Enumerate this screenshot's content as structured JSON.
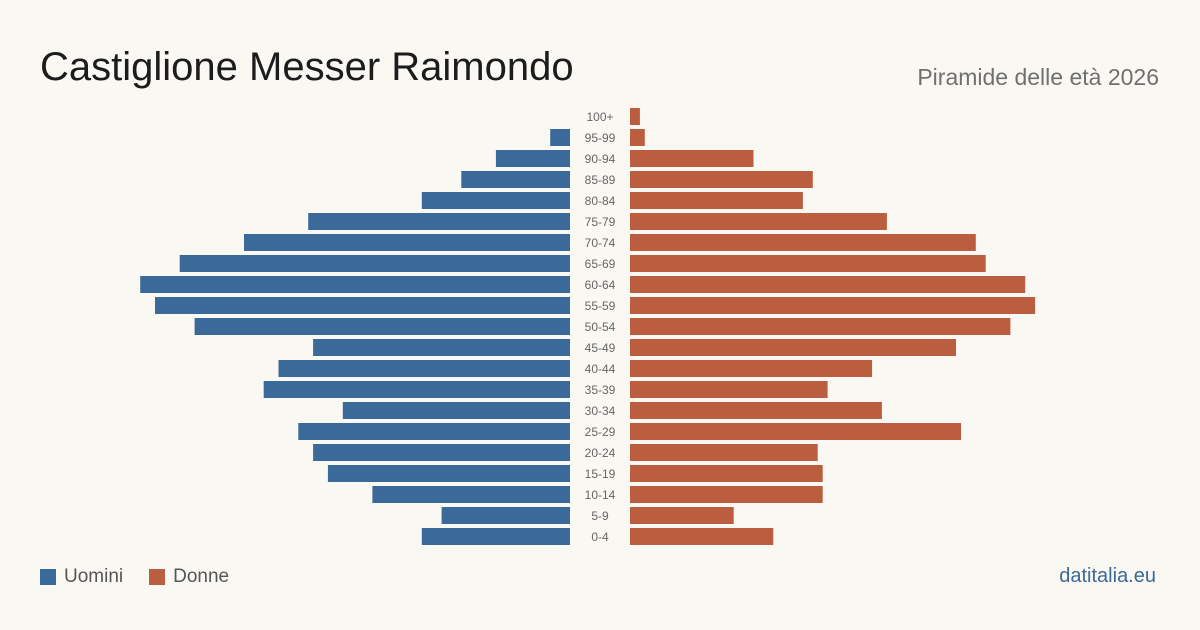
{
  "title": "Castiglione Messer Raimondo",
  "subtitle": "Piramide delle età 2026",
  "site": "datitalia.eu",
  "legend": {
    "men": "Uomini",
    "women": "Donne"
  },
  "colors": {
    "background": "#faf8f3",
    "men": "#3b6a9a",
    "women": "#bb5d3f",
    "label": "#666666",
    "site": "#3c6997"
  },
  "chart_data": {
    "type": "bar",
    "categories": [
      "0-4",
      "5-9",
      "10-14",
      "15-19",
      "20-24",
      "25-29",
      "30-34",
      "35-39",
      "40-44",
      "45-49",
      "50-54",
      "55-59",
      "60-64",
      "65-69",
      "70-74",
      "75-79",
      "80-84",
      "85-89",
      "90-94",
      "95-99",
      "100+"
    ],
    "series": [
      {
        "name": "Uomini",
        "values": [
          30,
          26,
          40,
          49,
          52,
          55,
          46,
          62,
          59,
          52,
          76,
          84,
          87,
          79,
          66,
          53,
          30,
          22,
          15,
          4,
          0
        ]
      },
      {
        "name": "Donne",
        "values": [
          29,
          21,
          39,
          39,
          38,
          67,
          51,
          40,
          49,
          66,
          77,
          82,
          80,
          72,
          70,
          52,
          35,
          37,
          25,
          3,
          2
        ]
      }
    ],
    "orientation": "horizontal-pyramid",
    "grid": false,
    "legend_position": "bottom-left"
  }
}
